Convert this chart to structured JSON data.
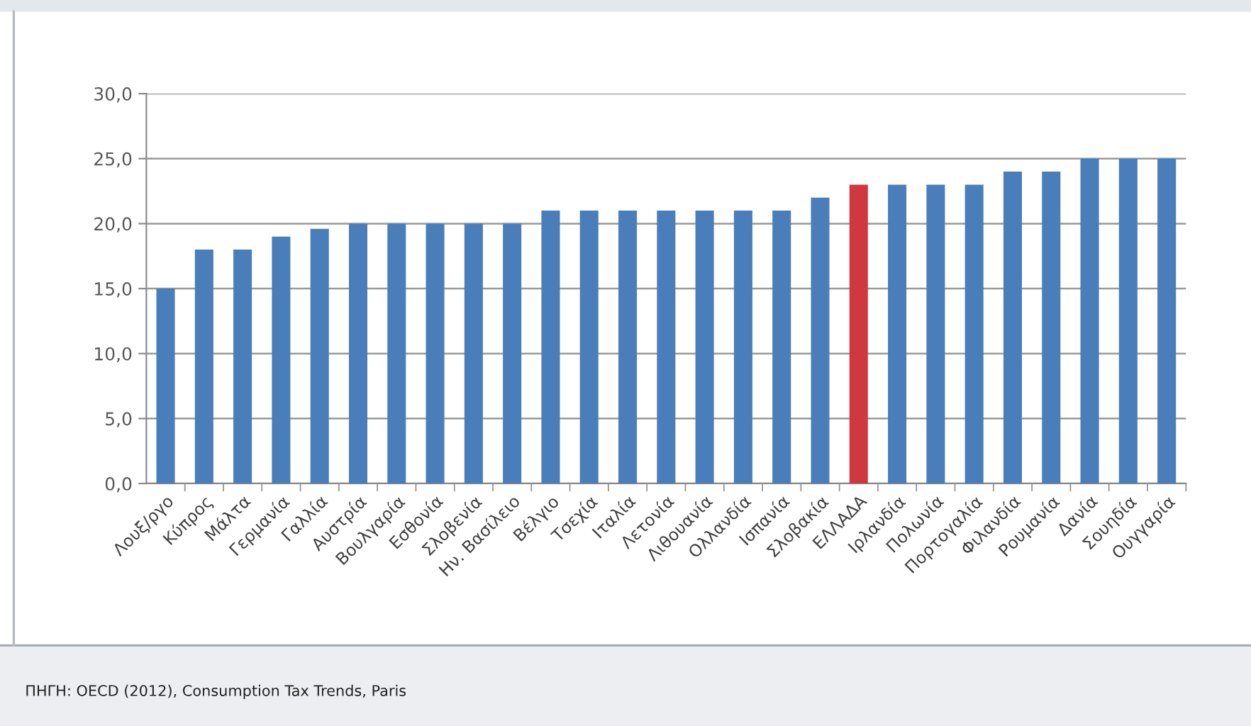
{
  "chart_data": {
    "type": "bar",
    "categories": [
      "Λουξ/ργο",
      "Κύπρος",
      "Μάλτα",
      "Γερμανία",
      "Γαλλία",
      "Αυστρία",
      "Βουλγαρία",
      "Εσθονία",
      "Σλοβενία",
      "Ην. Βασίλειο",
      "Βέλγιο",
      "Τσεχία",
      "Ιταλία",
      "Λετονία",
      "Λιθουανία",
      "Ολλανδία",
      "Ισπανία",
      "Σλοβακία",
      "ΕΛΛΑΔΑ",
      "Ιρλανδία",
      "Πολωνία",
      "Πορτογαλία",
      "Φιλανδία",
      "Ρουμανία",
      "Δανία",
      "Σουηδία",
      "Ουγγαρία"
    ],
    "values": [
      15,
      18,
      18,
      19,
      19.6,
      20,
      20,
      20,
      20,
      20,
      21,
      21,
      21,
      21,
      21,
      21,
      21,
      22,
      23,
      23,
      23,
      23,
      24,
      24,
      25,
      25,
      25
    ],
    "colors": [
      "#4a7ebb",
      "#4a7ebb",
      "#4a7ebb",
      "#4a7ebb",
      "#4a7ebb",
      "#4a7ebb",
      "#4a7ebb",
      "#4a7ebb",
      "#4a7ebb",
      "#4a7ebb",
      "#4a7ebb",
      "#4a7ebb",
      "#4a7ebb",
      "#4a7ebb",
      "#4a7ebb",
      "#4a7ebb",
      "#4a7ebb",
      "#4a7ebb",
      "#d0383f",
      "#4a7ebb",
      "#4a7ebb",
      "#4a7ebb",
      "#4a7ebb",
      "#4a7ebb",
      "#4a7ebb",
      "#4a7ebb",
      "#4a7ebb"
    ],
    "ylim": [
      0,
      30
    ],
    "yticks": [
      {
        "value": 0,
        "label": "0,0"
      },
      {
        "value": 5,
        "label": "5,0"
      },
      {
        "value": 10,
        "label": "10,0"
      },
      {
        "value": 15,
        "label": "15,0"
      },
      {
        "value": 20,
        "label": "20,0"
      },
      {
        "value": 25,
        "label": "25,0"
      },
      {
        "value": 30,
        "label": "30,0"
      }
    ],
    "grid": "y",
    "annotations": [
      "ΠΗΓΗ: OECD (2012), Consumption Tax Trends, Paris"
    ]
  }
}
